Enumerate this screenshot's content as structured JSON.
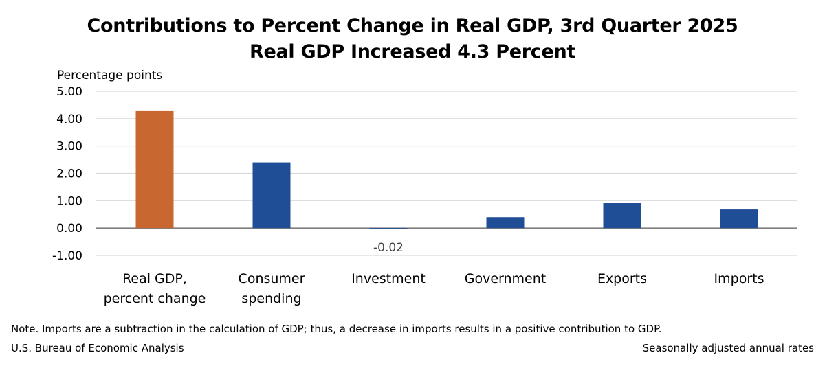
{
  "chart_data": {
    "type": "bar",
    "title": "Contributions to Percent Change in Real GDP, 3rd Quarter 2025",
    "subtitle": "Real GDP Increased 4.3 Percent",
    "ylabel": "Percentage points",
    "xlabel": "",
    "ylim": [
      -1,
      5
    ],
    "yticks": [
      5,
      4,
      3,
      2,
      1,
      0,
      -1
    ],
    "ytick_labels": [
      "5.00",
      "4.00",
      "3.00",
      "2.00",
      "1.00",
      "0.00",
      "-1.00"
    ],
    "grid": true,
    "categories": [
      [
        "Real GDP,",
        "percent change"
      ],
      [
        "Consumer",
        "spending"
      ],
      [
        "Investment"
      ],
      [
        "Government"
      ],
      [
        "Exports"
      ],
      [
        "Imports"
      ]
    ],
    "values": [
      4.3,
      2.4,
      -0.02,
      0.4,
      0.92,
      0.68
    ],
    "colors": [
      "#C8672F",
      "#1F4E96",
      "#1F4E96",
      "#1F4E96",
      "#1F4E96",
      "#1F4E96"
    ],
    "data_labels": [
      null,
      null,
      "-0.02",
      null,
      null,
      null
    ]
  },
  "footer": {
    "note": "Note. Imports are a subtraction in the calculation of GDP; thus, a decrease in imports results in a positive contribution to GDP.",
    "source": "U.S. Bureau of Economic Analysis",
    "rates": "Seasonally adjusted annual rates"
  }
}
